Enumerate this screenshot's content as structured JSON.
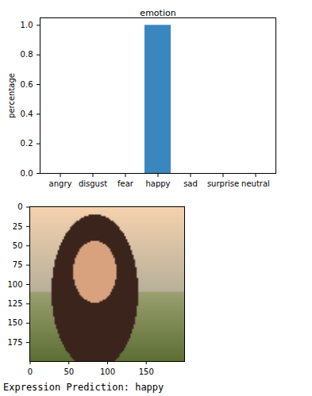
{
  "chart_data": [
    {
      "type": "bar",
      "title": "emotion",
      "y_label": "percentage",
      "categories": [
        "angry",
        "disgust",
        "fear",
        "happy",
        "sad",
        "surprise",
        "neutral"
      ],
      "values": [
        0,
        0,
        0,
        1.0,
        0,
        0,
        0
      ],
      "color": "#3a87c0",
      "ylim": [
        0,
        1.05
      ],
      "yticks": [
        {
          "value": 0,
          "label": "0.0"
        },
        {
          "value": 0.2,
          "label": "0.2"
        },
        {
          "value": 0.4,
          "label": "0.4"
        },
        {
          "value": 0.6,
          "label": "0.6"
        },
        {
          "value": 0.8,
          "label": "0.8"
        },
        {
          "value": 1.0,
          "label": "1.0"
        }
      ]
    },
    {
      "type": "image",
      "xlim": [
        -0.5,
        199.5
      ],
      "ylim": [
        199.5,
        -0.5
      ],
      "xticks": [
        0,
        50,
        100,
        150
      ],
      "yticks": [
        0,
        25,
        50,
        75,
        100,
        125,
        150,
        175
      ]
    }
  ],
  "output_text": "Expression Prediction: happy"
}
